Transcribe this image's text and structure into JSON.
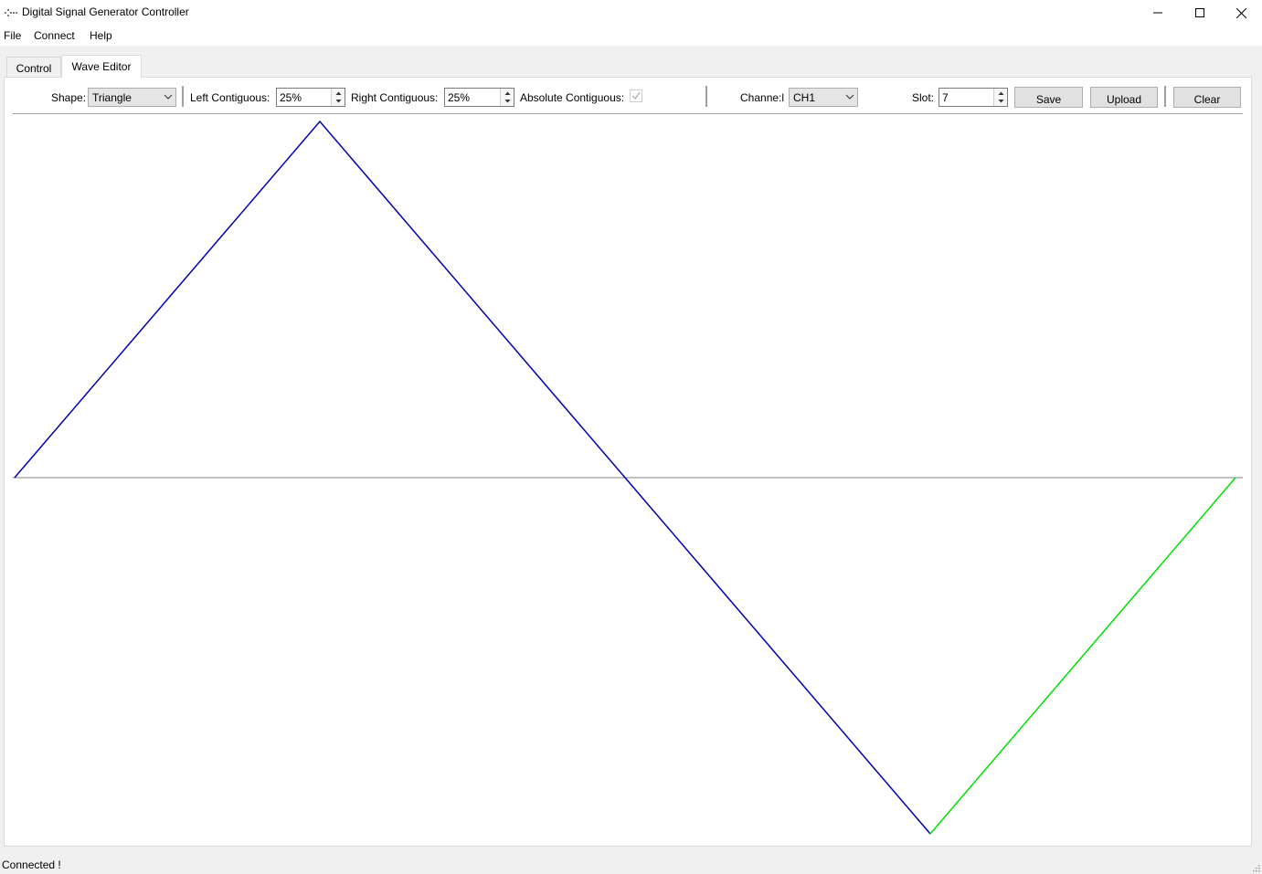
{
  "window": {
    "title": "Digital Signal Generator Controller"
  },
  "menu": {
    "file": "File",
    "connect": "Connect",
    "help": "Help"
  },
  "tabs": {
    "control": "Control",
    "wave_editor": "Wave Editor"
  },
  "toolbar": {
    "shape_label": "Shape:",
    "shape_value": "Triangle",
    "left_label": "Left Contiguous:",
    "left_value": "25%",
    "right_label": "Right Contiguous:",
    "right_value": "25%",
    "absolute_label": "Absolute Contiguous:",
    "absolute_checked": true,
    "channel_label": "Channe:l",
    "channel_value": "CH1",
    "slot_label": "Slot:",
    "slot_value": "7",
    "save_label": "Save",
    "upload_label": "Upload",
    "clear_label": "Clear"
  },
  "wave": {
    "baseline_color": "#808080",
    "wave_color": "#0000b0",
    "highlight_color": "#00e000",
    "main_wave": [
      [
        0,
        0
      ],
      [
        0.25,
        1
      ],
      [
        0.5,
        0
      ],
      [
        0.75,
        -1
      ]
    ],
    "highlight_segment": [
      [
        0.75,
        -1
      ],
      [
        1,
        0
      ]
    ]
  },
  "status": {
    "text": "Connected !"
  }
}
